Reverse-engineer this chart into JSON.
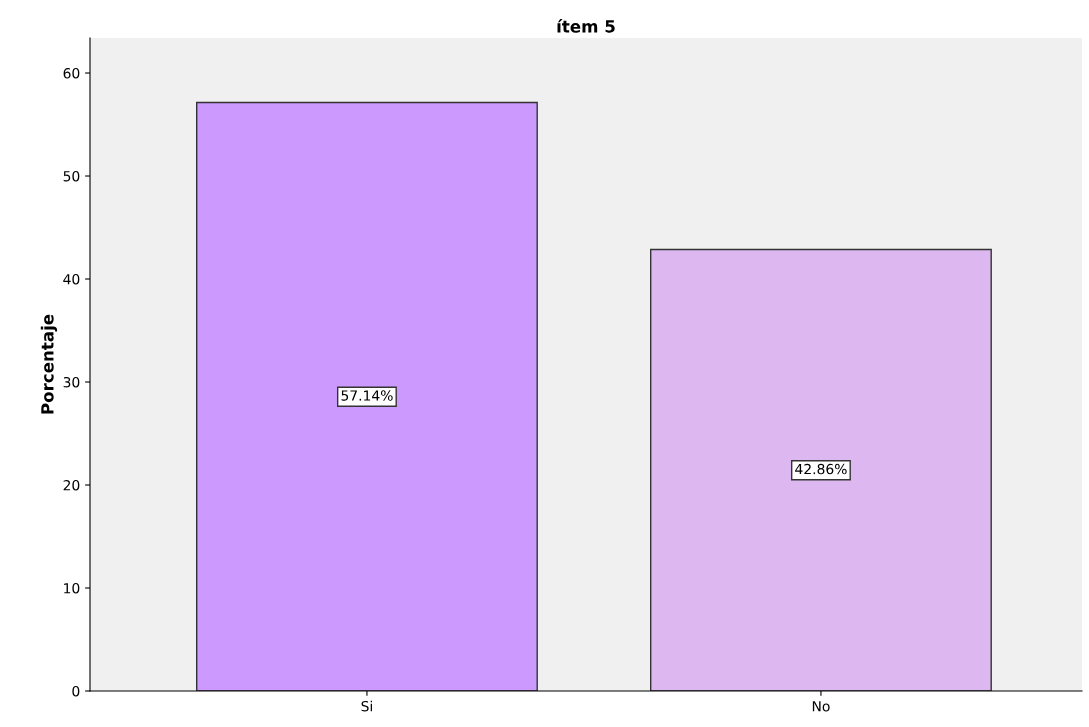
{
  "chart_data": {
    "type": "bar",
    "title": "ítem 5",
    "ylabel": "Porcentaje",
    "categories": [
      "Si",
      "No"
    ],
    "values": [
      57.14,
      42.86
    ],
    "colors": [
      "#cc99ff",
      "#ddb8f0"
    ],
    "value_labels": [
      "57.14%",
      "42.86%"
    ],
    "ylim": [
      0,
      63.4
    ],
    "yticks": [
      0,
      10,
      20,
      30,
      40,
      50,
      60
    ],
    "grid": false
  }
}
